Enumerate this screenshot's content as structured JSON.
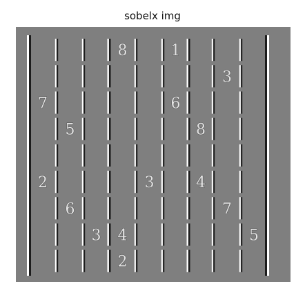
{
  "title": "sobelx img",
  "colors": {
    "background": "#7f7f7f",
    "edge_light": "#ffffff",
    "edge_dark": "#1c1c1c"
  },
  "grid": {
    "rows": 9,
    "cols": 9,
    "digits": [
      {
        "row": 0,
        "col": 3,
        "value": "8"
      },
      {
        "row": 0,
        "col": 5,
        "value": "1"
      },
      {
        "row": 1,
        "col": 7,
        "value": "3"
      },
      {
        "row": 2,
        "col": 0,
        "value": "7"
      },
      {
        "row": 2,
        "col": 5,
        "value": "6"
      },
      {
        "row": 3,
        "col": 1,
        "value": "5"
      },
      {
        "row": 3,
        "col": 6,
        "value": "8"
      },
      {
        "row": 5,
        "col": 0,
        "value": "2"
      },
      {
        "row": 5,
        "col": 4,
        "value": "3"
      },
      {
        "row": 5,
        "col": 6,
        "value": "4"
      },
      {
        "row": 6,
        "col": 1,
        "value": "6"
      },
      {
        "row": 6,
        "col": 7,
        "value": "7"
      },
      {
        "row": 7,
        "col": 2,
        "value": "3"
      },
      {
        "row": 7,
        "col": 3,
        "value": "4"
      },
      {
        "row": 7,
        "col": 8,
        "value": "5"
      },
      {
        "row": 8,
        "col": 3,
        "value": "2"
      }
    ]
  }
}
